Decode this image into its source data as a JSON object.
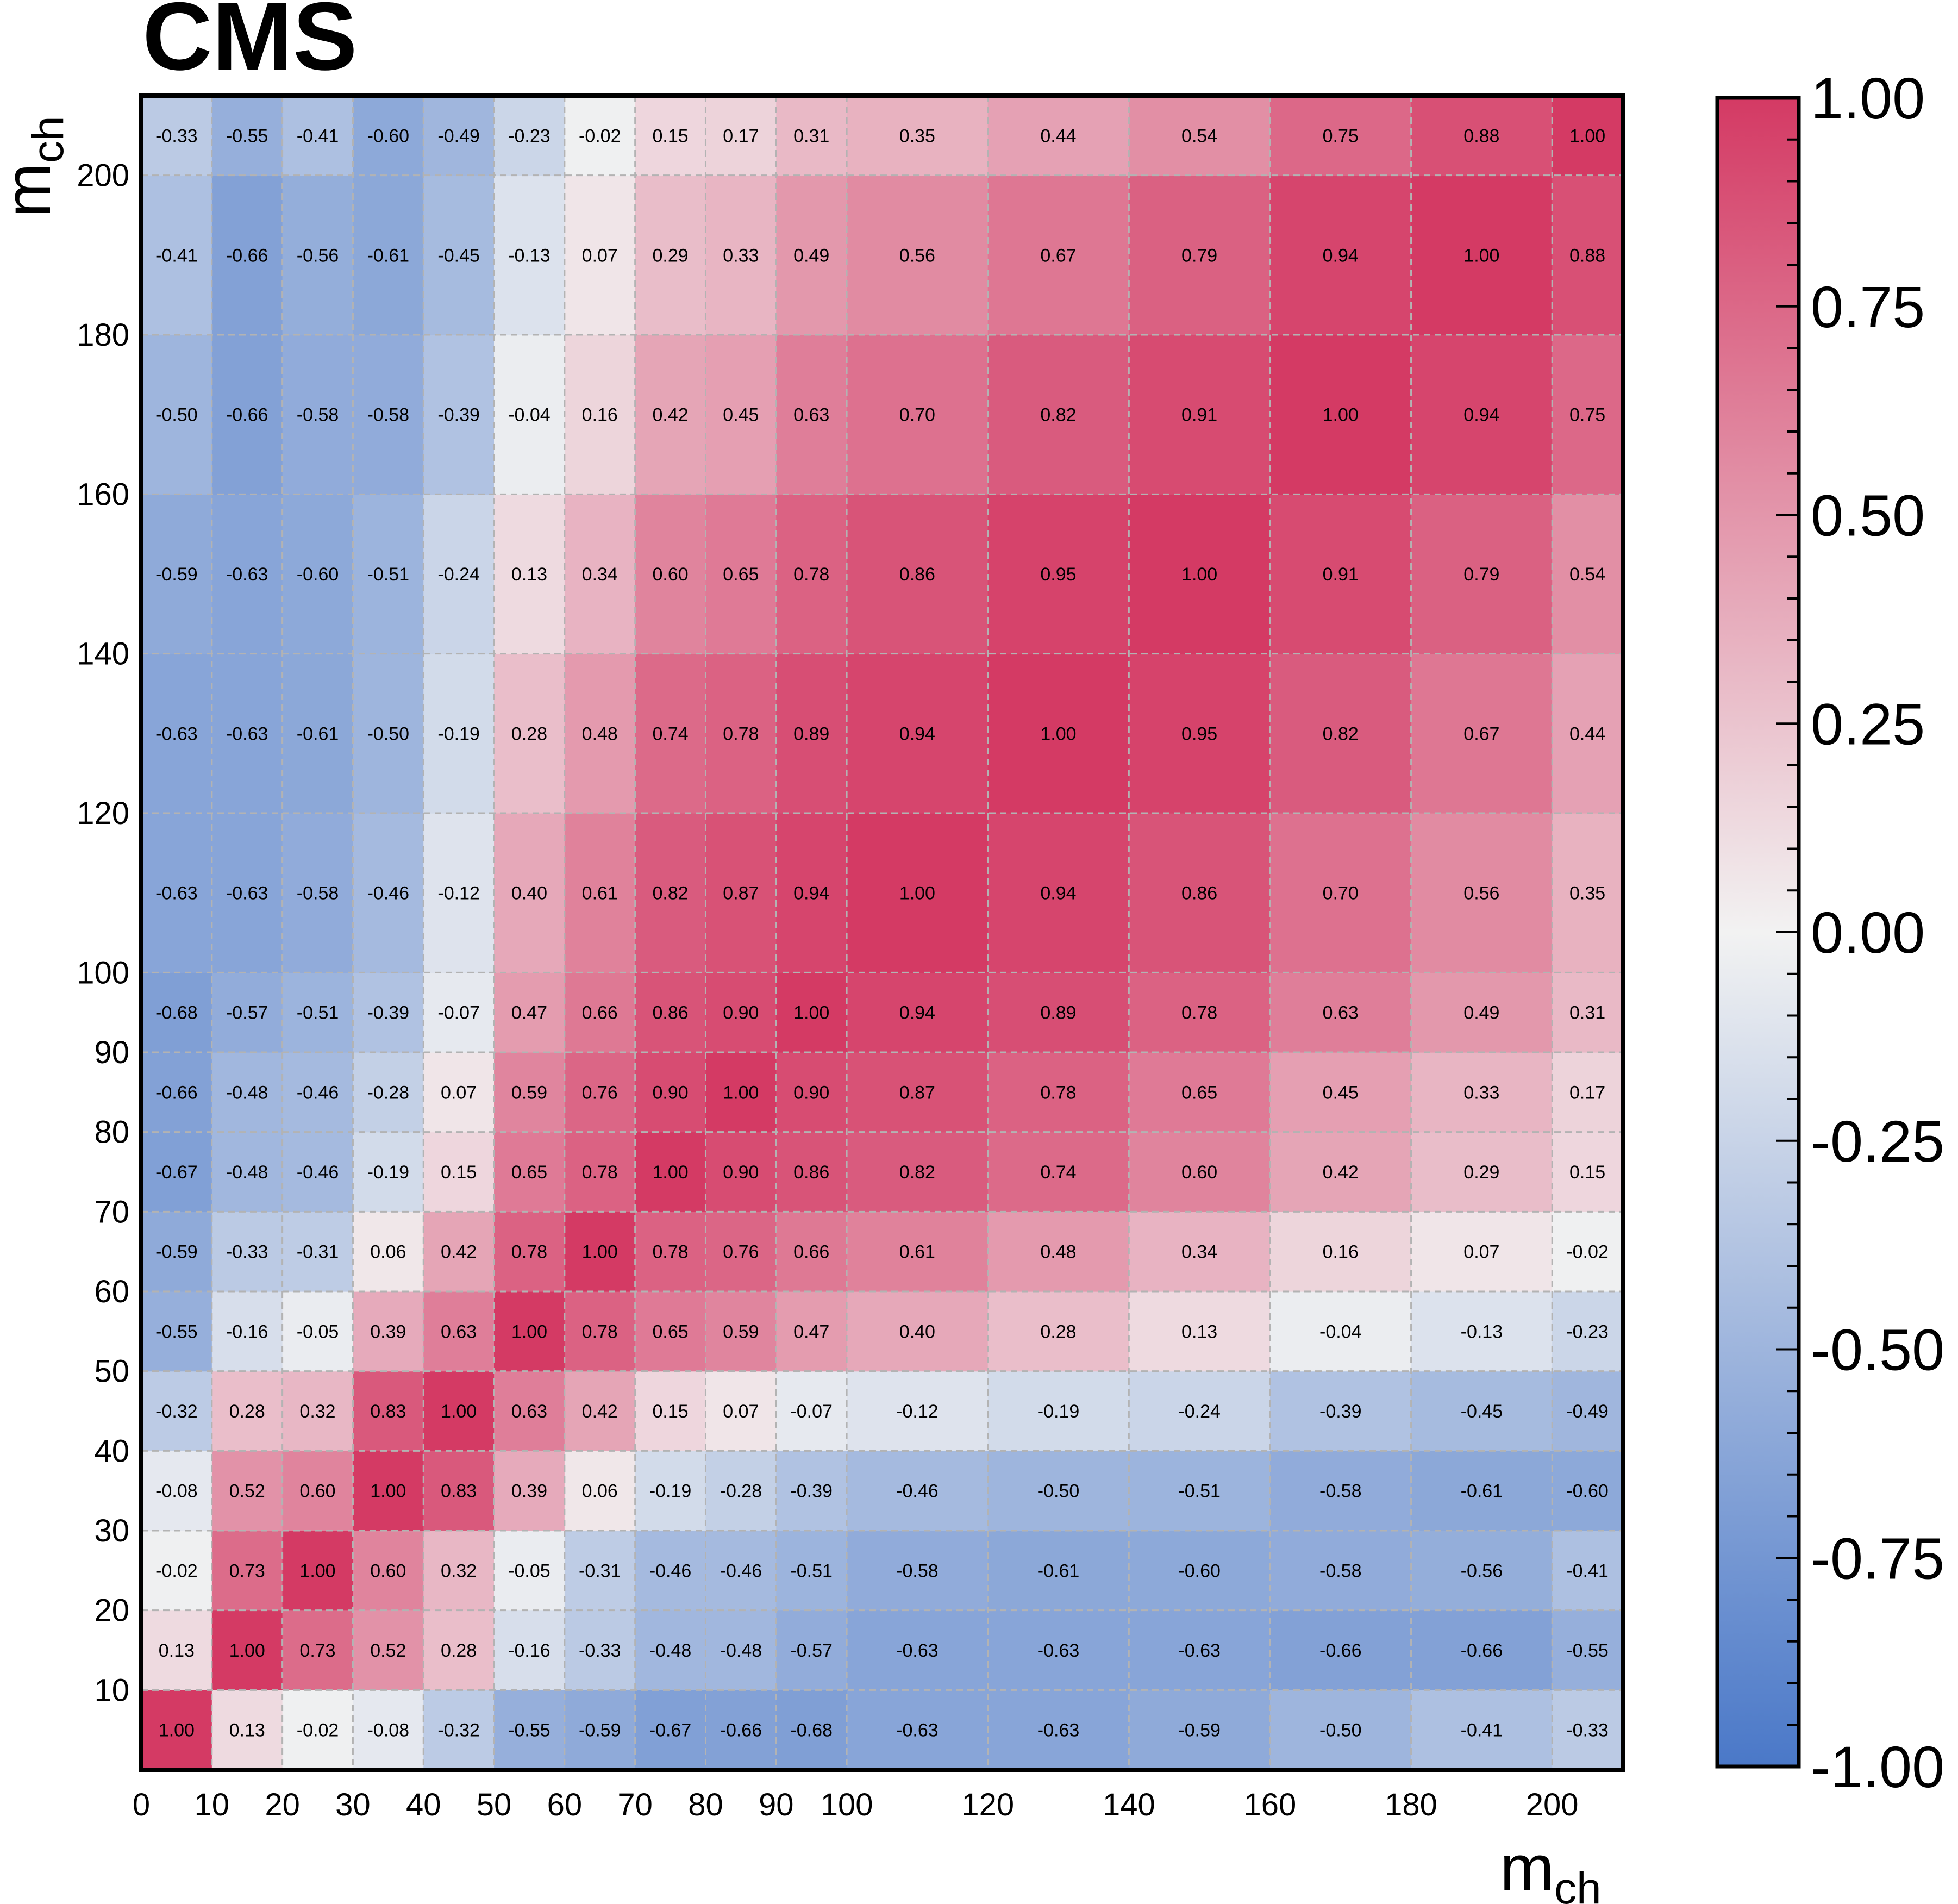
{
  "chart_data": {
    "type": "heatmap",
    "title": "CMS",
    "xlabel": "m",
    "xlabel_sub": "ch",
    "ylabel": "m",
    "ylabel_sub": "ch",
    "bin_edges": [
      0,
      10,
      20,
      30,
      40,
      50,
      60,
      70,
      80,
      90,
      100,
      120,
      140,
      160,
      180,
      200,
      210
    ],
    "x_ticks": [
      0,
      10,
      20,
      30,
      40,
      50,
      60,
      70,
      80,
      90,
      100,
      120,
      140,
      160,
      180,
      200
    ],
    "x_tick_labels": [
      "0",
      "10",
      "20",
      "30",
      "40",
      "50",
      "60",
      "70",
      "80",
      "90",
      "100",
      "120",
      "140",
      "160",
      "180",
      "200"
    ],
    "y_ticks": [
      10,
      20,
      30,
      40,
      50,
      60,
      70,
      80,
      90,
      100,
      120,
      140,
      160,
      180,
      200
    ],
    "y_tick_labels": [
      "10",
      "20",
      "30",
      "40",
      "50",
      "60",
      "70",
      "80",
      "90",
      "100",
      "120",
      "140",
      "160",
      "180",
      "200"
    ],
    "colorbar_range": [
      -1.0,
      1.0
    ],
    "colorbar_ticks": [
      1.0,
      0.75,
      0.5,
      0.25,
      0.0,
      -0.25,
      -0.5,
      -0.75,
      -1.0
    ],
    "colorbar_tick_labels": [
      "1.00",
      "0.75",
      "0.50",
      "0.25",
      "0.00",
      "-0.25",
      "-0.50",
      "-0.75",
      "-1.00"
    ],
    "colors": {
      "negative": "#4a78c8",
      "zero": "#f2f2f2",
      "positive": "#d43a64"
    },
    "values_by_row_bottom_to_top": [
      [
        "1.00",
        "0.13",
        "-0.02",
        "-0.08",
        "-0.32",
        "-0.55",
        "-0.59",
        "-0.67",
        "-0.66",
        "-0.68",
        "-0.63",
        "-0.63",
        "-0.59",
        "-0.50",
        "-0.41",
        "-0.33"
      ],
      [
        "0.13",
        "1.00",
        "0.73",
        "0.52",
        "0.28",
        "-0.16",
        "-0.33",
        "-0.48",
        "-0.48",
        "-0.57",
        "-0.63",
        "-0.63",
        "-0.63",
        "-0.66",
        "-0.66",
        "-0.55"
      ],
      [
        "-0.02",
        "0.73",
        "1.00",
        "0.60",
        "0.32",
        "-0.05",
        "-0.31",
        "-0.46",
        "-0.46",
        "-0.51",
        "-0.58",
        "-0.61",
        "-0.60",
        "-0.58",
        "-0.56",
        "-0.41"
      ],
      [
        "-0.08",
        "0.52",
        "0.60",
        "1.00",
        "0.83",
        "0.39",
        "0.06",
        "-0.19",
        "-0.28",
        "-0.39",
        "-0.46",
        "-0.50",
        "-0.51",
        "-0.58",
        "-0.61",
        "-0.60"
      ],
      [
        "-0.32",
        "0.28",
        "0.32",
        "0.83",
        "1.00",
        "0.63",
        "0.42",
        "0.15",
        "0.07",
        "-0.07",
        "-0.12",
        "-0.19",
        "-0.24",
        "-0.39",
        "-0.45",
        "-0.49"
      ],
      [
        "-0.55",
        "-0.16",
        "-0.05",
        "0.39",
        "0.63",
        "1.00",
        "0.78",
        "0.65",
        "0.59",
        "0.47",
        "0.40",
        "0.28",
        "0.13",
        "-0.04",
        "-0.13",
        "-0.23"
      ],
      [
        "-0.59",
        "-0.33",
        "-0.31",
        "0.06",
        "0.42",
        "0.78",
        "1.00",
        "0.78",
        "0.76",
        "0.66",
        "0.61",
        "0.48",
        "0.34",
        "0.16",
        "0.07",
        "-0.02"
      ],
      [
        "-0.67",
        "-0.48",
        "-0.46",
        "-0.19",
        "0.15",
        "0.65",
        "0.78",
        "1.00",
        "0.90",
        "0.86",
        "0.82",
        "0.74",
        "0.60",
        "0.42",
        "0.29",
        "0.15"
      ],
      [
        "-0.66",
        "-0.48",
        "-0.46",
        "-0.28",
        "0.07",
        "0.59",
        "0.76",
        "0.90",
        "1.00",
        "0.90",
        "0.87",
        "0.78",
        "0.65",
        "0.45",
        "0.33",
        "0.17"
      ],
      [
        "-0.68",
        "-0.57",
        "-0.51",
        "-0.39",
        "-0.07",
        "0.47",
        "0.66",
        "0.86",
        "0.90",
        "1.00",
        "0.94",
        "0.89",
        "0.78",
        "0.63",
        "0.49",
        "0.31"
      ],
      [
        "-0.63",
        "-0.63",
        "-0.58",
        "-0.46",
        "-0.12",
        "0.40",
        "0.61",
        "0.82",
        "0.87",
        "0.94",
        "1.00",
        "0.94",
        "0.86",
        "0.70",
        "0.56",
        "0.35"
      ],
      [
        "-0.63",
        "-0.63",
        "-0.61",
        "-0.50",
        "-0.19",
        "0.28",
        "0.48",
        "0.74",
        "0.78",
        "0.89",
        "0.94",
        "1.00",
        "0.95",
        "0.82",
        "0.67",
        "0.44"
      ],
      [
        "-0.59",
        "-0.63",
        "-0.60",
        "-0.51",
        "-0.24",
        "0.13",
        "0.34",
        "0.60",
        "0.65",
        "0.78",
        "0.86",
        "0.95",
        "1.00",
        "0.91",
        "0.79",
        "0.54"
      ],
      [
        "-0.50",
        "-0.66",
        "-0.58",
        "-0.58",
        "-0.39",
        "-0.04",
        "0.16",
        "0.42",
        "0.45",
        "0.63",
        "0.70",
        "0.82",
        "0.91",
        "1.00",
        "0.94",
        "0.75"
      ],
      [
        "-0.41",
        "-0.66",
        "-0.56",
        "-0.61",
        "-0.45",
        "-0.13",
        "0.07",
        "0.29",
        "0.33",
        "0.49",
        "0.56",
        "0.67",
        "0.79",
        "0.94",
        "1.00",
        "0.88"
      ],
      [
        "-0.33",
        "-0.55",
        "-0.41",
        "-0.60",
        "-0.49",
        "-0.23",
        "-0.02",
        "0.15",
        "0.17",
        "0.31",
        "0.35",
        "0.44",
        "0.54",
        "0.75",
        "0.88",
        "1.00"
      ]
    ]
  }
}
